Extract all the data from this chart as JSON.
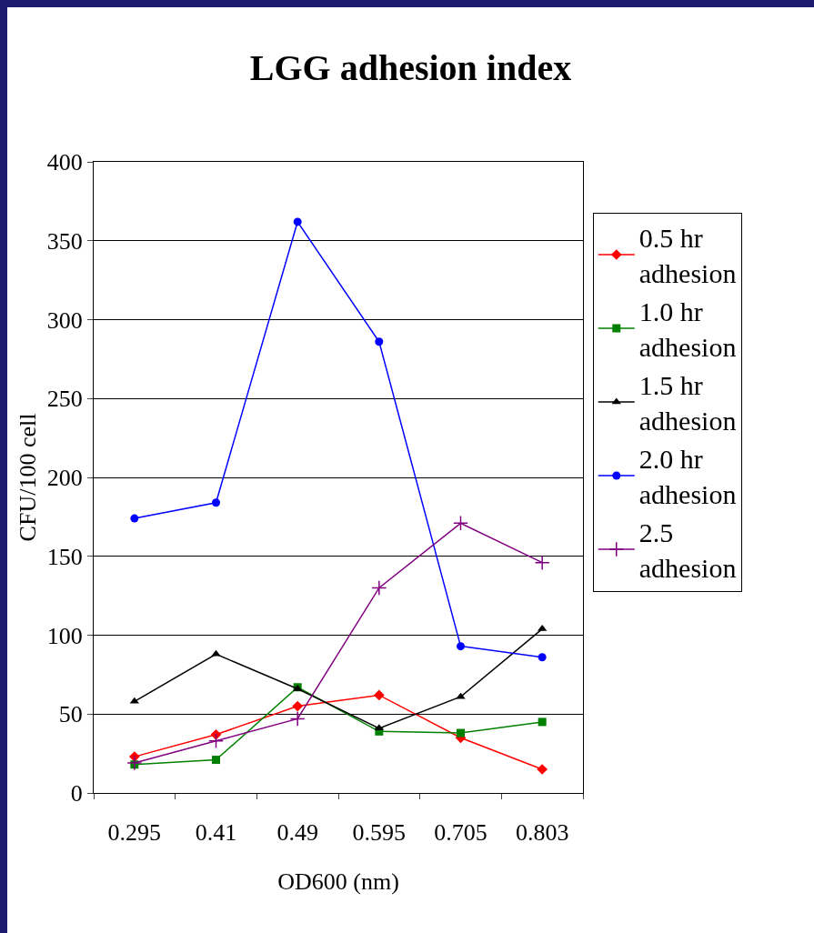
{
  "chart_data": {
    "type": "line",
    "title": "LGG adhesion index",
    "xlabel": "OD600 (nm)",
    "ylabel": "CFU/100 cell",
    "categories": [
      "0.295",
      "0.41",
      "0.49",
      "0.595",
      "0.705",
      "0.803"
    ],
    "series": [
      {
        "name": "0.5 hr adhesion",
        "color": "#ff0000",
        "marker": "diamond",
        "values": [
          23,
          37,
          55,
          62,
          35,
          15
        ]
      },
      {
        "name": "1.0 hr adhesion",
        "color": "#008000",
        "marker": "square",
        "values": [
          18,
          21,
          67,
          39,
          38,
          45
        ]
      },
      {
        "name": "1.5 hr adhesion",
        "color": "#000000",
        "marker": "triangle",
        "values": [
          58,
          88,
          66,
          41,
          61,
          104
        ]
      },
      {
        "name": "2.0 hr adhesion",
        "color": "#0000ff",
        "marker": "circle",
        "values": [
          174,
          184,
          362,
          286,
          93,
          86
        ]
      },
      {
        "name": "2.5 adhesion",
        "color": "#800080",
        "marker": "cross",
        "values": [
          19,
          33,
          47,
          130,
          171,
          146
        ]
      }
    ],
    "ylim": [
      0,
      400
    ],
    "yticks": [
      0,
      50,
      100,
      150,
      200,
      250,
      300,
      350,
      400
    ],
    "grid": "y",
    "legend": "right",
    "line_style": "solid"
  }
}
